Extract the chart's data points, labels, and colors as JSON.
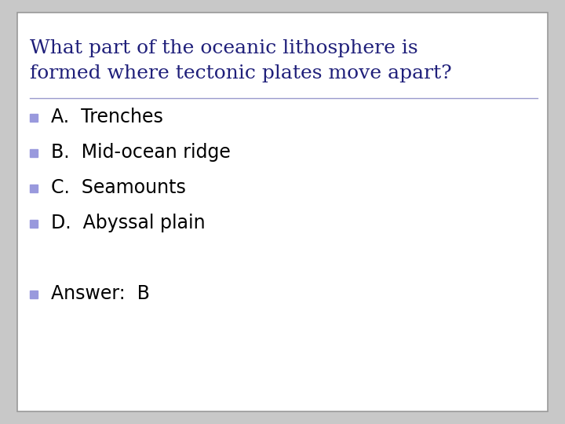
{
  "title_line1": "What part of the oceanic lithosphere is",
  "title_line2": "formed where tectonic plates move apart?",
  "title_color": "#1f1f7a",
  "title_fontsize": 18,
  "options": [
    "A.  Trenches",
    "B.  Mid-ocean ridge",
    "C.  Seamounts",
    "D.  Abyssal plain"
  ],
  "answer": "Answer:  B",
  "option_fontsize": 17,
  "answer_fontsize": 17,
  "text_color": "#000000",
  "bullet_color": "#9999dd",
  "bg_color": "#ffffff",
  "border_color": "#999999",
  "line_color": "#9999cc",
  "outer_bg": "#c8c8c8"
}
